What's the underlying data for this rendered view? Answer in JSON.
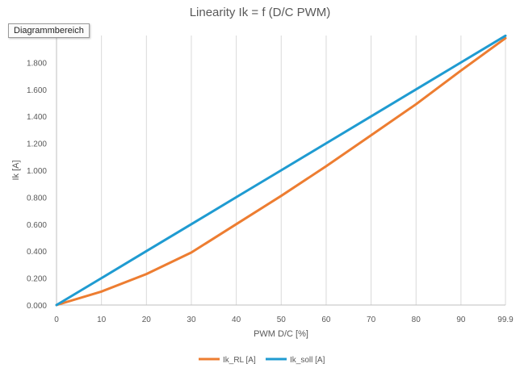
{
  "chart_title": "Linearity Ik = f (D/C PWM)",
  "tooltip": "Diagrammbereich",
  "chart_data": {
    "type": "line",
    "title": "Linearity Ik = f (D/C PWM)",
    "xlabel": "PWM D/C [%]",
    "ylabel": "Ik [A]",
    "x_tick_labels": [
      "0",
      "10",
      "20",
      "30",
      "40",
      "50",
      "60",
      "70",
      "80",
      "90",
      "99.9"
    ],
    "y_tick_labels": [
      "0.000",
      "0.200",
      "0.400",
      "0.600",
      "0.800",
      "1.000",
      "1.200",
      "1.400",
      "1.600",
      "1.800"
    ],
    "xlim": [
      0,
      99.9
    ],
    "ylim": [
      0,
      2.0
    ],
    "grid": "vertical",
    "legend_position": "bottom",
    "x": [
      0,
      10,
      20,
      30,
      40,
      50,
      60,
      70,
      80,
      90,
      99.9
    ],
    "series": [
      {
        "name": "Ik_RL [A]",
        "color": "#ED7D31",
        "values": [
          0,
          0.1,
          0.23,
          0.39,
          0.6,
          0.81,
          1.03,
          1.26,
          1.49,
          1.74,
          1.98
        ]
      },
      {
        "name": "Ik_soll [A]",
        "color": "#1F9BD1",
        "values": [
          0,
          0.2,
          0.4,
          0.6,
          0.8,
          1.0,
          1.2,
          1.4,
          1.6,
          1.8,
          1.998
        ]
      }
    ]
  }
}
